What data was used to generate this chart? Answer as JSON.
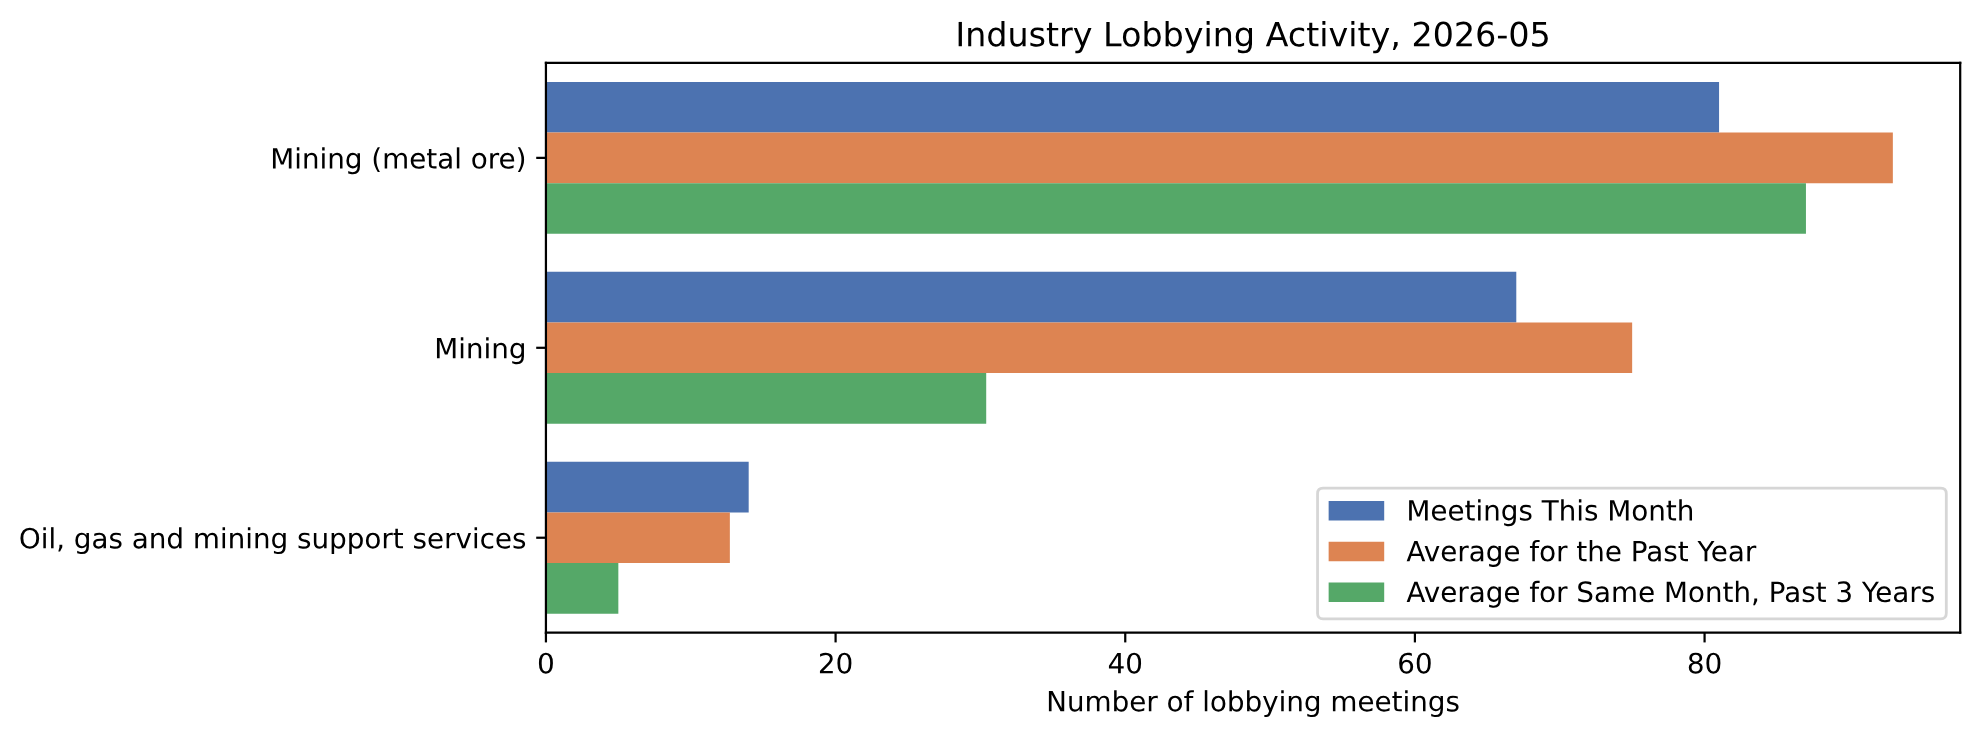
{
  "chart_data": {
    "type": "bar",
    "orientation": "horizontal",
    "title": "Industry Lobbying Activity, 2026-05",
    "xlabel": "Number of lobbying meetings",
    "categories": [
      "Mining (metal ore)",
      "Mining",
      "Oil, gas and mining support services"
    ],
    "series": [
      {
        "name": "Meetings This Month",
        "color": "#4c72b0",
        "values": [
          81,
          67,
          14
        ]
      },
      {
        "name": "Average for the Past Year",
        "color": "#dd8452",
        "values": [
          93,
          75,
          12.7
        ]
      },
      {
        "name": "Average for Same Month, Past 3 Years",
        "color": "#55a868",
        "values": [
          87,
          30.4,
          5
        ]
      }
    ],
    "xlim": [
      0,
      97.65
    ],
    "xticks": [
      0,
      20,
      40,
      60,
      80
    ],
    "grid": false,
    "legend": "bottom right"
  }
}
